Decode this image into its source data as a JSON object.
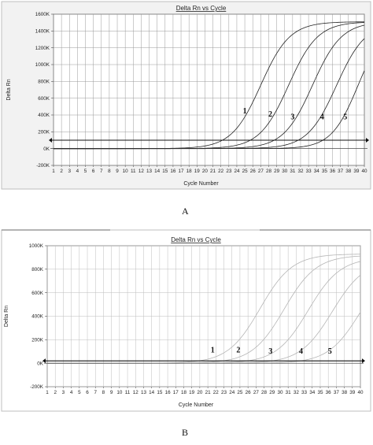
{
  "chart_data": [
    {
      "type": "line",
      "title": "Delta Rn vs Cycle",
      "xlabel": "Cycle Number",
      "ylabel": "Delta Rn",
      "xlim": [
        1,
        40
      ],
      "ylim": [
        -200000,
        1600000
      ],
      "x_ticks": [
        "1",
        "2",
        "3",
        "4",
        "5",
        "6",
        "7",
        "8",
        "9",
        "10",
        "11",
        "12",
        "13",
        "14",
        "15",
        "16",
        "17",
        "18",
        "19",
        "20",
        "21",
        "22",
        "23",
        "24",
        "25",
        "26",
        "27",
        "28",
        "29",
        "30",
        "31",
        "32",
        "33",
        "34",
        "35",
        "36",
        "37",
        "38",
        "39",
        "40"
      ],
      "y_ticks": [
        {
          "v": 1600000,
          "t": "1600K"
        },
        {
          "v": 1400000,
          "t": "1400K"
        },
        {
          "v": 1200000,
          "t": "1200K"
        },
        {
          "v": 1000000,
          "t": "1000K"
        },
        {
          "v": 800000,
          "t": "800K"
        },
        {
          "v": 600000,
          "t": "600K"
        },
        {
          "v": 400000,
          "t": "400K"
        },
        {
          "v": 200000,
          "t": "200K"
        },
        {
          "v": 0,
          "t": "0K"
        },
        {
          "v": -200000,
          "t": "-200K"
        }
      ],
      "grid": true,
      "threshold": 100000,
      "series": [
        {
          "label": "1",
          "midpoint": 27,
          "plateau": 1510000,
          "k": 0.55,
          "label_at": [
            25,
            420000
          ]
        },
        {
          "label": "2",
          "midpoint": 30.5,
          "plateau": 1510000,
          "k": 0.55,
          "label_at": [
            28.2,
            380000
          ]
        },
        {
          "label": "3",
          "midpoint": 33.5,
          "plateau": 1510000,
          "k": 0.55,
          "label_at": [
            31,
            350000
          ]
        },
        {
          "label": "4",
          "midpoint": 36.5,
          "plateau": 1500000,
          "k": 0.55,
          "label_at": [
            34.7,
            350000
          ]
        },
        {
          "label": "5",
          "midpoint": 39.2,
          "plateau": 1500000,
          "k": 0.6,
          "label_at": [
            37.6,
            350000
          ]
        }
      ],
      "caption": "A"
    },
    {
      "type": "line",
      "title": "Delta Rn vs Cycle",
      "xlabel": "Cycle Number",
      "ylabel": "Delta Rn",
      "xlim": [
        1,
        40
      ],
      "ylim": [
        -200000,
        1000000
      ],
      "x_ticks": [
        "1",
        "2",
        "3",
        "4",
        "5",
        "6",
        "7",
        "8",
        "9",
        "10",
        "11",
        "12",
        "13",
        "14",
        "15",
        "16",
        "17",
        "18",
        "19",
        "20",
        "21",
        "22",
        "23",
        "24",
        "25",
        "26",
        "27",
        "28",
        "29",
        "30",
        "31",
        "32",
        "33",
        "34",
        "35",
        "36",
        "37",
        "38",
        "39",
        "40"
      ],
      "y_ticks": [
        {
          "v": 1000000,
          "t": "1000K"
        },
        {
          "v": 800000,
          "t": "800K"
        },
        {
          "v": 600000,
          "t": "600K"
        },
        {
          "v": 400000,
          "t": "400K"
        },
        {
          "v": 200000,
          "t": "200K"
        },
        {
          "v": 0,
          "t": "0K"
        },
        {
          "v": -200000,
          "t": "-200K"
        }
      ],
      "grid": true,
      "threshold": 20000,
      "series": [
        {
          "label": "1",
          "midpoint": 27.5,
          "plateau": 930000,
          "k": 0.5,
          "label_at": [
            21.6,
            90000
          ]
        },
        {
          "label": "2",
          "midpoint": 30.5,
          "plateau": 920000,
          "k": 0.5,
          "label_at": [
            24.8,
            90000
          ]
        },
        {
          "label": "3",
          "midpoint": 33.5,
          "plateau": 900000,
          "k": 0.5,
          "label_at": [
            28.8,
            80000
          ]
        },
        {
          "label": "4",
          "midpoint": 36.5,
          "plateau": 880000,
          "k": 0.5,
          "label_at": [
            32.6,
            80000
          ]
        },
        {
          "label": "5",
          "midpoint": 40,
          "plateau": 870000,
          "k": 0.5,
          "label_at": [
            36.2,
            80000
          ]
        }
      ],
      "caption": "B"
    }
  ]
}
